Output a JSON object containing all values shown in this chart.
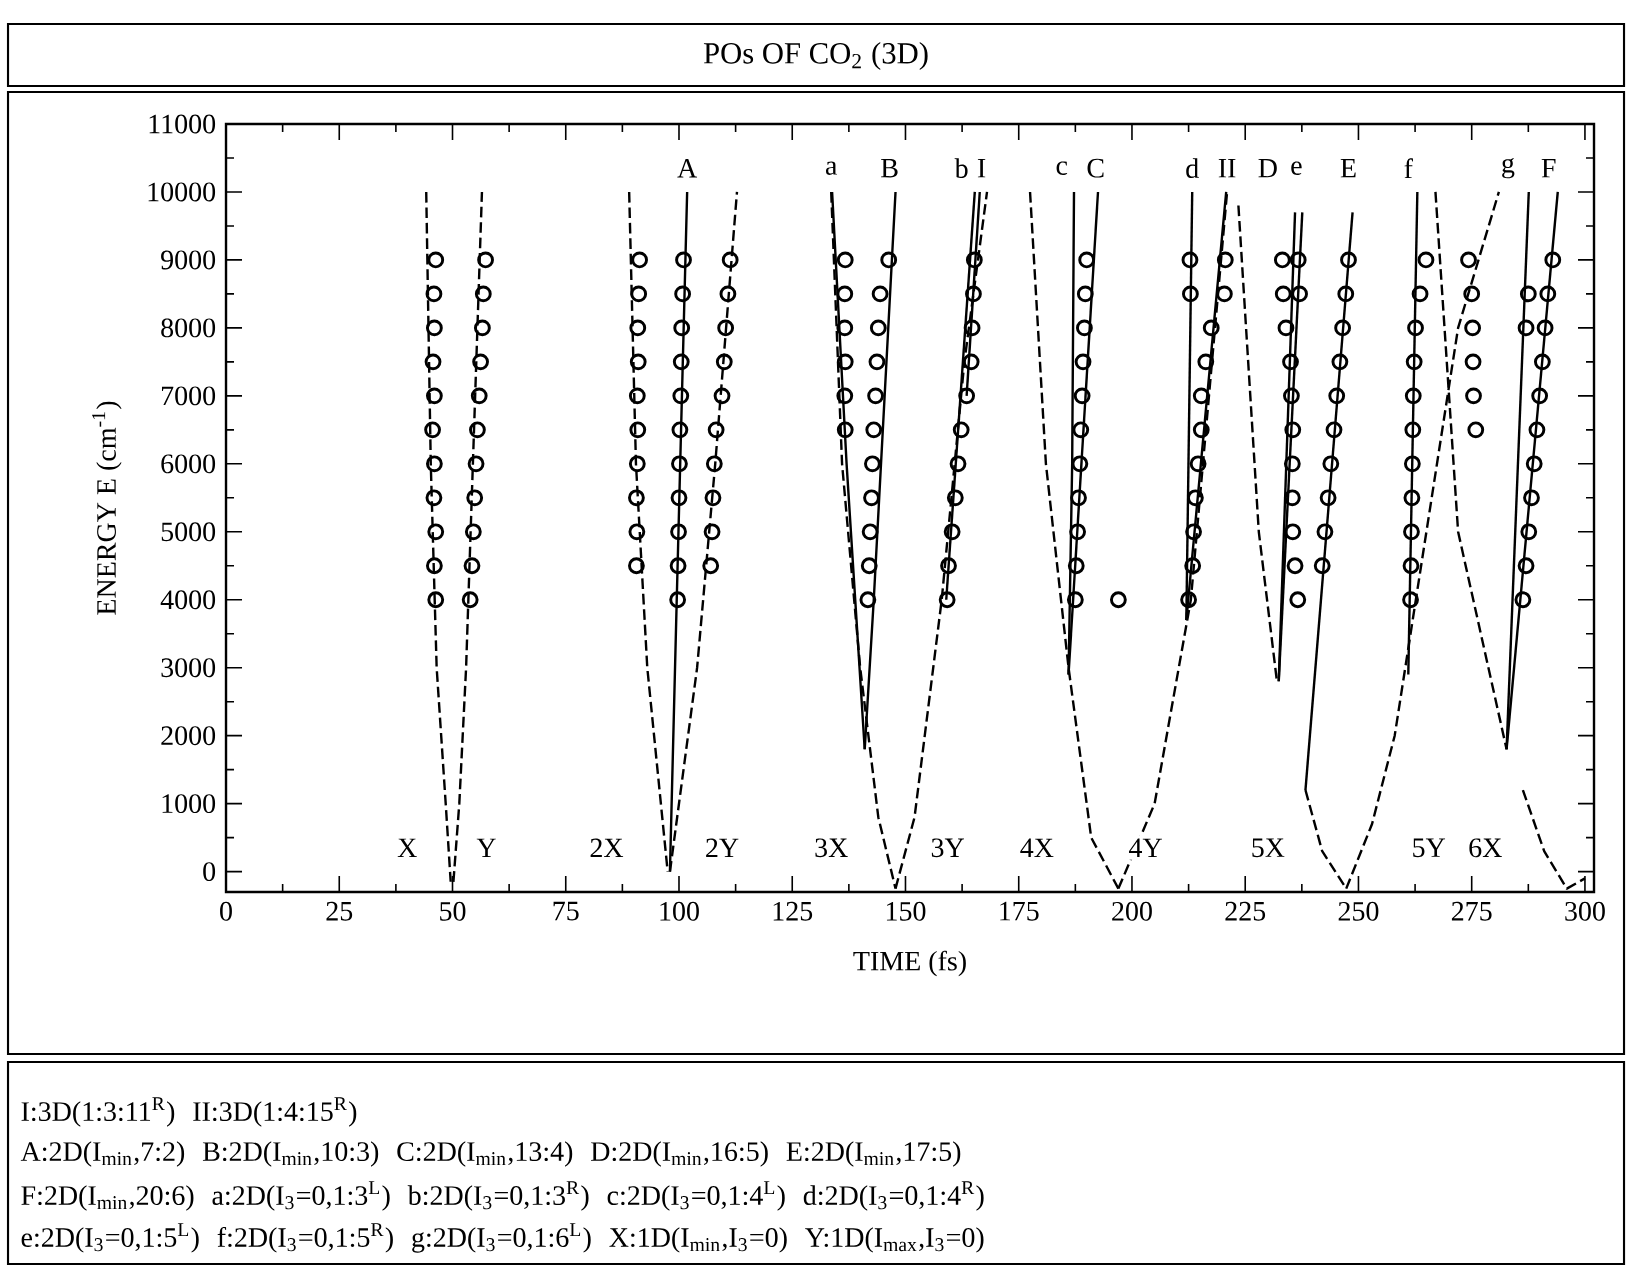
{
  "chart_data": {
    "type": "line",
    "title": "POs OF CO$_{2}$ (3D)",
    "xlabel": "TIME (fs)",
    "ylabel": "ENERGY E (cm$^{-1}$)",
    "xlim": [
      0,
      302
    ],
    "ylim": [
      -300,
      11000
    ],
    "xticks": [
      0,
      25,
      50,
      75,
      100,
      125,
      150,
      175,
      200,
      225,
      250,
      275,
      300
    ],
    "yticks": [
      0,
      1000,
      2000,
      3000,
      4000,
      5000,
      6000,
      7000,
      8000,
      9000,
      10000,
      11000
    ],
    "series": [
      {
        "type": "line",
        "line_style": "dashed",
        "color": "#000000",
        "x": [
          44.2,
          45.2,
          46.5,
          48.5,
          49.6
        ],
        "values": [
          10000,
          6000,
          3000,
          1000,
          -150
        ]
      },
      {
        "type": "line",
        "line_style": "dashed",
        "color": "#000000",
        "x": [
          50.2,
          51.5,
          53,
          54.5,
          56.5
        ],
        "values": [
          -150,
          1000,
          3000,
          6000,
          10000
        ]
      },
      {
        "type": "line",
        "line_style": "dashed",
        "color": "#000000",
        "x": [
          89,
          90.5,
          93,
          97.5
        ],
        "values": [
          10000,
          6000,
          3000,
          0
        ]
      },
      {
        "type": "line",
        "line_style": "solid",
        "color": "#000000",
        "x": [
          98,
          99.5,
          101.8
        ],
        "values": [
          0,
          4000,
          10000
        ]
      },
      {
        "type": "line",
        "line_style": "dashed",
        "color": "#000000",
        "x": [
          98,
          104,
          108,
          112.8
        ],
        "values": [
          0,
          3000,
          6000,
          10000
        ]
      },
      {
        "type": "line",
        "line_style": "dashed",
        "color": "#000000",
        "x": [
          133.6,
          136,
          140,
          144,
          147.8
        ],
        "values": [
          10000,
          6000,
          3000,
          800,
          -250
        ]
      },
      {
        "type": "line",
        "line_style": "dashed",
        "color": "#000000",
        "x": [
          147.8,
          152,
          158,
          163,
          168
        ],
        "values": [
          -250,
          800,
          4000,
          7500,
          10000
        ]
      },
      {
        "type": "line",
        "line_style": "solid",
        "color": "#000000",
        "x": [
          133.8,
          137,
          141
        ],
        "values": [
          10000,
          6000,
          1800
        ]
      },
      {
        "type": "line",
        "line_style": "solid",
        "color": "#000000",
        "x": [
          141,
          143,
          147.8
        ],
        "values": [
          1800,
          4000,
          10000
        ]
      },
      {
        "type": "line",
        "line_style": "solid",
        "color": "#000000",
        "x": [
          159,
          165.3
        ],
        "values": [
          4000,
          10000
        ]
      },
      {
        "type": "line",
        "line_style": "solid",
        "color": "#000000",
        "x": [
          163.5,
          166.4
        ],
        "values": [
          7000,
          10000
        ]
      },
      {
        "type": "line",
        "line_style": "dashed",
        "color": "#000000",
        "x": [
          177.5,
          181,
          186,
          191,
          197
        ],
        "values": [
          10000,
          6000,
          3000,
          500,
          -250
        ]
      },
      {
        "type": "line",
        "line_style": "dashed",
        "color": "#000000",
        "x": [
          197,
          205,
          213,
          221
        ],
        "values": [
          -250,
          1000,
          4000,
          10000
        ]
      },
      {
        "type": "line",
        "line_style": "solid",
        "color": "#000000",
        "x": [
          186,
          186.8,
          187.2
        ],
        "values": [
          2900,
          6000,
          10000
        ]
      },
      {
        "type": "line",
        "line_style": "solid",
        "color": "#000000",
        "x": [
          186,
          192.5
        ],
        "values": [
          2900,
          10000
        ]
      },
      {
        "type": "line",
        "line_style": "solid",
        "color": "#000000",
        "x": [
          212,
          213.3
        ],
        "values": [
          3700,
          10000
        ]
      },
      {
        "type": "line",
        "line_style": "solid",
        "color": "#000000",
        "x": [
          212,
          220.8
        ],
        "values": [
          3700,
          10000
        ]
      },
      {
        "type": "line",
        "line_style": "dashed",
        "color": "#000000",
        "x": [
          223.5,
          228,
          232
        ],
        "values": [
          9800,
          5000,
          2800
        ]
      },
      {
        "type": "line",
        "line_style": "solid",
        "color": "#000000",
        "x": [
          232.4,
          237.6
        ],
        "values": [
          2800,
          9700
        ]
      },
      {
        "type": "line",
        "line_style": "solid",
        "color": "#000000",
        "x": [
          232.4,
          236
        ],
        "values": [
          2800,
          9700
        ]
      },
      {
        "type": "line",
        "line_style": "solid",
        "color": "#000000",
        "x": [
          238.3,
          248.7
        ],
        "values": [
          1200,
          9700
        ]
      },
      {
        "type": "line",
        "line_style": "dashed",
        "color": "#000000",
        "x": [
          238.3,
          242,
          247.3
        ],
        "values": [
          1200,
          300,
          -250
        ]
      },
      {
        "type": "line",
        "line_style": "dashed",
        "color": "#000000",
        "x": [
          247.3,
          253,
          258,
          265,
          272,
          281
        ],
        "values": [
          -250,
          700,
          2000,
          5000,
          8000,
          10000
        ]
      },
      {
        "type": "line",
        "line_style": "solid",
        "color": "#000000",
        "x": [
          261,
          263
        ],
        "values": [
          2900,
          10000
        ]
      },
      {
        "type": "line",
        "line_style": "dashed",
        "color": "#000000",
        "x": [
          267,
          272,
          282.7
        ],
        "values": [
          10000,
          5000,
          1800
        ]
      },
      {
        "type": "line",
        "line_style": "solid",
        "color": "#000000",
        "x": [
          282.7,
          287.6
        ],
        "values": [
          1800,
          10000
        ]
      },
      {
        "type": "line",
        "line_style": "solid",
        "color": "#000000",
        "x": [
          282.7,
          294
        ],
        "values": [
          1800,
          10000
        ]
      },
      {
        "type": "line",
        "line_style": "dashed",
        "color": "#000000",
        "x": [
          286.3,
          291,
          296,
          300
        ],
        "values": [
          1200,
          300,
          -250,
          -100
        ]
      },
      {
        "type": "scatter",
        "marker": "circle",
        "color": "#000000",
        "x": [
          46.3,
          46.0,
          46.3,
          45.9,
          46.0,
          45.6,
          46.0,
          45.7,
          46.0,
          45.9,
          46.3
        ],
        "values": [
          4000,
          4500,
          5000,
          5500,
          6000,
          6500,
          7000,
          7500,
          8000,
          8500,
          9000
        ]
      },
      {
        "type": "scatter",
        "marker": "circle",
        "color": "#000000",
        "x": [
          53.9,
          54.3,
          54.6,
          54.9,
          55.2,
          55.5,
          55.9,
          56.2,
          56.6,
          56.8,
          57.3
        ],
        "values": [
          4000,
          4500,
          5000,
          5500,
          6000,
          6500,
          7000,
          7500,
          8000,
          8500,
          9000
        ]
      },
      {
        "type": "scatter",
        "marker": "circle",
        "color": "#000000",
        "x": [
          90.6,
          90.7,
          90.6,
          90.8,
          90.9,
          90.8,
          91.0,
          90.9,
          91.1,
          91.3
        ],
        "values": [
          4500,
          5000,
          5500,
          6000,
          6500,
          7000,
          7500,
          8000,
          8500,
          9000
        ]
      },
      {
        "type": "scatter",
        "marker": "circle",
        "color": "#000000",
        "x": [
          99.7,
          99.8,
          99.9,
          100.0,
          100.1,
          100.2,
          100.4,
          100.5,
          100.6,
          100.8,
          101.0
        ],
        "values": [
          4000,
          4500,
          5000,
          5500,
          6000,
          6500,
          7000,
          7500,
          8000,
          8500,
          9000
        ]
      },
      {
        "type": "scatter",
        "marker": "circle",
        "color": "#000000",
        "x": [
          107,
          107.3,
          107.5,
          107.8,
          108.2,
          109.5,
          110,
          110.3,
          110.8,
          111.3
        ],
        "values": [
          4500,
          5000,
          5500,
          6000,
          6500,
          7000,
          7500,
          8000,
          8500,
          9000
        ]
      },
      {
        "type": "scatter",
        "marker": "circle",
        "color": "#000000",
        "x": [
          136.7,
          136.6,
          136.7,
          136.6,
          136.6,
          136.7
        ],
        "values": [
          6500,
          7000,
          7500,
          8000,
          8500,
          9000
        ]
      },
      {
        "type": "scatter",
        "marker": "circle",
        "color": "#000000",
        "x": [
          141.7,
          142.0,
          142.2,
          142.5,
          142.7,
          143.0,
          143.4,
          143.7,
          144.0,
          144.4,
          146.3
        ],
        "values": [
          4000,
          4500,
          5000,
          5500,
          6000,
          6500,
          7000,
          7500,
          8000,
          8500,
          9000
        ]
      },
      {
        "type": "scatter",
        "marker": "circle",
        "color": "#000000",
        "x": [
          159.2,
          159.5,
          160.3,
          161,
          161.6,
          162.3,
          163.5,
          164.5,
          164.7,
          165,
          165.2
        ],
        "values": [
          4000,
          4500,
          5000,
          5500,
          6000,
          6500,
          7000,
          7500,
          8000,
          8500,
          9000
        ]
      },
      {
        "type": "scatter",
        "marker": "circle",
        "color": "#000000",
        "x": [
          187.5,
          187.7,
          188.0,
          188.2,
          188.5,
          188.7,
          189.0,
          189.2,
          189.5,
          189.7,
          190.0,
          197
        ],
        "values": [
          4000,
          4500,
          5000,
          5500,
          6000,
          6500,
          7000,
          7500,
          8000,
          8500,
          9000,
          4000
        ]
      },
      {
        "type": "scatter",
        "marker": "circle",
        "color": "#000000",
        "x": [
          212.5,
          212.9,
          212.8,
          213.4,
          213.6,
          214,
          214.6,
          215.3,
          215.3,
          216.3,
          217.5,
          220.4,
          220.6
        ],
        "values": [
          4000,
          8500,
          9000,
          4500,
          5000,
          5500,
          6000,
          6500,
          7000,
          7500,
          8000,
          8500,
          9000
        ]
      },
      {
        "type": "scatter",
        "marker": "circle",
        "color": "#000000",
        "x": [
          233.2,
          236.7,
          233.4,
          237,
          234,
          235,
          235.2,
          235.5,
          235.4,
          235.4,
          235.5,
          236,
          236.6
        ],
        "values": [
          9000,
          9000,
          8500,
          8500,
          8000,
          7500,
          7000,
          6500,
          6000,
          5500,
          5000,
          4500,
          4000
        ]
      },
      {
        "type": "scatter",
        "marker": "circle",
        "color": "#000000",
        "x": [
          242,
          242.6,
          243.3,
          243.9,
          244.6,
          245.2,
          245.9,
          246.5,
          247.2,
          247.8
        ],
        "values": [
          4500,
          5000,
          5500,
          6000,
          6500,
          7000,
          7500,
          8000,
          8500,
          9000
        ]
      },
      {
        "type": "scatter",
        "marker": "circle",
        "color": "#000000",
        "x": [
          261.5,
          261.6,
          261.7,
          261.8,
          261.9,
          262.0,
          262.1,
          262.3,
          262.6,
          263.6,
          264.9
        ],
        "values": [
          4000,
          4500,
          5000,
          5500,
          6000,
          6500,
          7000,
          7500,
          8000,
          8500,
          9000
        ]
      },
      {
        "type": "scatter",
        "marker": "circle",
        "color": "#000000",
        "x": [
          275.9,
          275.4,
          275.3,
          275.2,
          275,
          274.3
        ],
        "values": [
          6500,
          7000,
          7500,
          8000,
          8500,
          9000
        ]
      },
      {
        "type": "scatter",
        "marker": "circle",
        "color": "#000000",
        "x": [
          286.3,
          287,
          287.6,
          288.2,
          288.8,
          289.4,
          290,
          290.6,
          291.2,
          291.8,
          292.9,
          287,
          287.5
        ],
        "values": [
          4000,
          4500,
          5000,
          5500,
          6000,
          6500,
          7000,
          7500,
          8000,
          8500,
          9000,
          8000,
          8500
        ]
      }
    ],
    "annotations": [
      {
        "text": "A",
        "x": 101.8,
        "y": 10350
      },
      {
        "text": "a",
        "x": 133.6,
        "y": 10350
      },
      {
        "text": "B",
        "x": 146.5,
        "y": 10350
      },
      {
        "text": "b",
        "x": 162.4,
        "y": 10350
      },
      {
        "text": "I",
        "x": 166.8,
        "y": 10350
      },
      {
        "text": "c",
        "x": 184.5,
        "y": 10350
      },
      {
        "text": "C",
        "x": 192,
        "y": 10350
      },
      {
        "text": "d",
        "x": 213.3,
        "y": 10350
      },
      {
        "text": "II",
        "x": 221,
        "y": 10350
      },
      {
        "text": "D",
        "x": 230,
        "y": 10350
      },
      {
        "text": "e",
        "x": 236.3,
        "y": 10350
      },
      {
        "text": "E",
        "x": 247.8,
        "y": 10350
      },
      {
        "text": "f",
        "x": 261,
        "y": 10350
      },
      {
        "text": "g",
        "x": 283,
        "y": 10350
      },
      {
        "text": "F",
        "x": 292,
        "y": 10350
      },
      {
        "text": "X",
        "x": 40,
        "y": 350
      },
      {
        "text": "Y",
        "x": 57.5,
        "y": 350
      },
      {
        "text": "2X",
        "x": 84,
        "y": 350
      },
      {
        "text": "2Y",
        "x": 109.5,
        "y": 350
      },
      {
        "text": "3X",
        "x": 133.6,
        "y": 350
      },
      {
        "text": "3Y",
        "x": 159.3,
        "y": 350
      },
      {
        "text": "4X",
        "x": 179,
        "y": 350
      },
      {
        "text": "4Y",
        "x": 203,
        "y": 350
      },
      {
        "text": "5X",
        "x": 230,
        "y": 350
      },
      {
        "text": "5Y",
        "x": 265.5,
        "y": 350
      },
      {
        "text": "6X",
        "x": 278,
        "y": 350
      },
      "I:3D(1:3:11$^{R}$)",
      "II:3D(1:4:15$^{R}$)",
      "A:2D(I$_{min}$,7:2)",
      "B:2D(I$_{min}$,10:3)",
      "C:2D(I$_{min}$,13:4)",
      "D:2D(I$_{min}$,16:5)",
      "E:2D(I$_{min}$,17:5)",
      "F:2D(I$_{min}$,20:6)",
      "a:2D(I$_{3}$=0,1:3$^{L}$)",
      "b:2D(I$_{3}$=0,1:3$^{R}$)",
      "c:2D(I$_{3}$=0,1:4$^{L}$)",
      "d:2D(I$_{3}$=0,1:4$^{R}$)",
      "e:2D(I$_{3}$=0,1:5$^{L}$)",
      "f:2D(I$_{3}$=0,1:5$^{R}$)",
      "g:2D(I$_{3}$=0,1:6$^{L}$)",
      "X:1D(I$_{min}$,I$_{3}$=0)",
      "Y:1D(I$_{max}$,I$_{3}$=0)"
    ]
  }
}
